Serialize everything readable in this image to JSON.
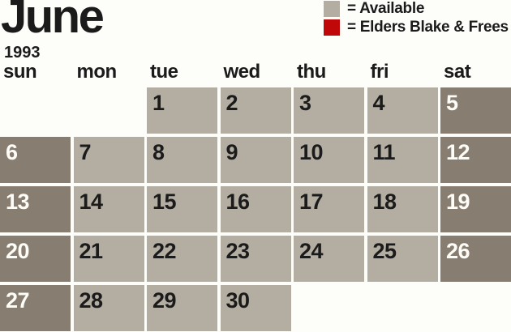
{
  "colors": {
    "background": "#fdfdfa",
    "ink": "#1b1b1b",
    "ink-light": "#fdfcf7",
    "available": "#b4ada2",
    "weekend": "#877d71",
    "booked": "#c10808"
  },
  "title": {
    "month": "June",
    "year": "1993"
  },
  "legend": {
    "items": [
      {
        "name": "available",
        "color": "#b4ada2",
        "label": "= Available"
      },
      {
        "name": "elders-blake-frees",
        "color": "#c10808",
        "label": "= Elders Blake & Frees"
      }
    ]
  },
  "weekdays": [
    "sun",
    "mon",
    "tue",
    "wed",
    "thu",
    "fri",
    "sat"
  ],
  "calendar": {
    "month": "June",
    "year": "1993",
    "start_weekday": "tue",
    "days": [
      {
        "day": "1",
        "state": "available"
      },
      {
        "day": "2",
        "state": "available"
      },
      {
        "day": "3",
        "state": "available"
      },
      {
        "day": "4",
        "state": "available"
      },
      {
        "day": "5",
        "state": "weekend"
      },
      {
        "day": "6",
        "state": "weekend"
      },
      {
        "day": "7",
        "state": "available"
      },
      {
        "day": "8",
        "state": "available"
      },
      {
        "day": "9",
        "state": "available"
      },
      {
        "day": "10",
        "state": "available"
      },
      {
        "day": "11",
        "state": "available"
      },
      {
        "day": "12",
        "state": "weekend"
      },
      {
        "day": "13",
        "state": "weekend"
      },
      {
        "day": "14",
        "state": "available"
      },
      {
        "day": "15",
        "state": "available"
      },
      {
        "day": "16",
        "state": "available"
      },
      {
        "day": "17",
        "state": "available"
      },
      {
        "day": "18",
        "state": "available"
      },
      {
        "day": "19",
        "state": "weekend"
      },
      {
        "day": "20",
        "state": "weekend"
      },
      {
        "day": "21",
        "state": "available"
      },
      {
        "day": "22",
        "state": "available"
      },
      {
        "day": "23",
        "state": "available"
      },
      {
        "day": "24",
        "state": "available"
      },
      {
        "day": "25",
        "state": "available"
      },
      {
        "day": "26",
        "state": "weekend"
      },
      {
        "day": "27",
        "state": "weekend"
      },
      {
        "day": "28",
        "state": "available"
      },
      {
        "day": "29",
        "state": "available"
      },
      {
        "day": "30",
        "state": "available"
      }
    ]
  }
}
